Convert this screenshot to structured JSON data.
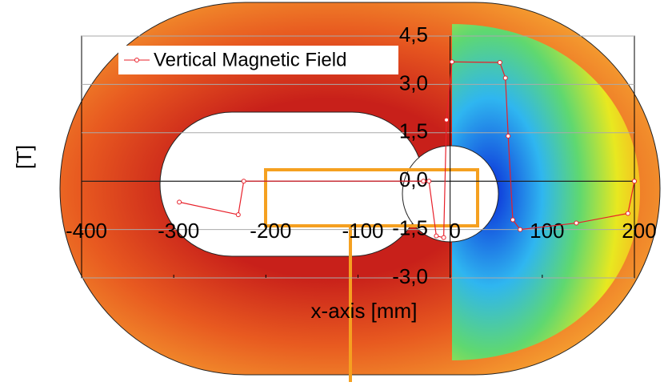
{
  "chart_data": {
    "type": "line",
    "x_label": "x-axis [mm]",
    "y_label": "[T]",
    "xlim": [
      -400,
      200
    ],
    "xticks": [
      -400,
      -300,
      -200,
      -100,
      0,
      100,
      200
    ],
    "ylim": [
      -3,
      4.5
    ],
    "yticks": [
      {
        "value": -3,
        "label": "-3,0"
      },
      {
        "value": -1.5,
        "label": "-1,5"
      },
      {
        "value": 0,
        "label": "0,0"
      },
      {
        "value": 1.5,
        "label": "1,5"
      },
      {
        "value": 3,
        "label": "3,0"
      },
      {
        "value": 4.5,
        "label": "4,5"
      }
    ],
    "grid": true,
    "legend": "upper left",
    "series": [
      {
        "name": "Vertical Magnetic Field",
        "color": "#e8202a",
        "x": [
          -294,
          -230,
          -224,
          -29,
          -23,
          -15,
          -7,
          -4,
          2,
          54,
          60,
          63,
          68,
          76,
          137,
          193,
          200
        ],
        "values": [
          -0.65,
          -1.04,
          0,
          0,
          0,
          -1.7,
          -1.75,
          1.9,
          3.7,
          3.68,
          3.2,
          1.4,
          -1.2,
          -1.5,
          -1.3,
          -1.0,
          0
        ]
      }
    ]
  }
}
